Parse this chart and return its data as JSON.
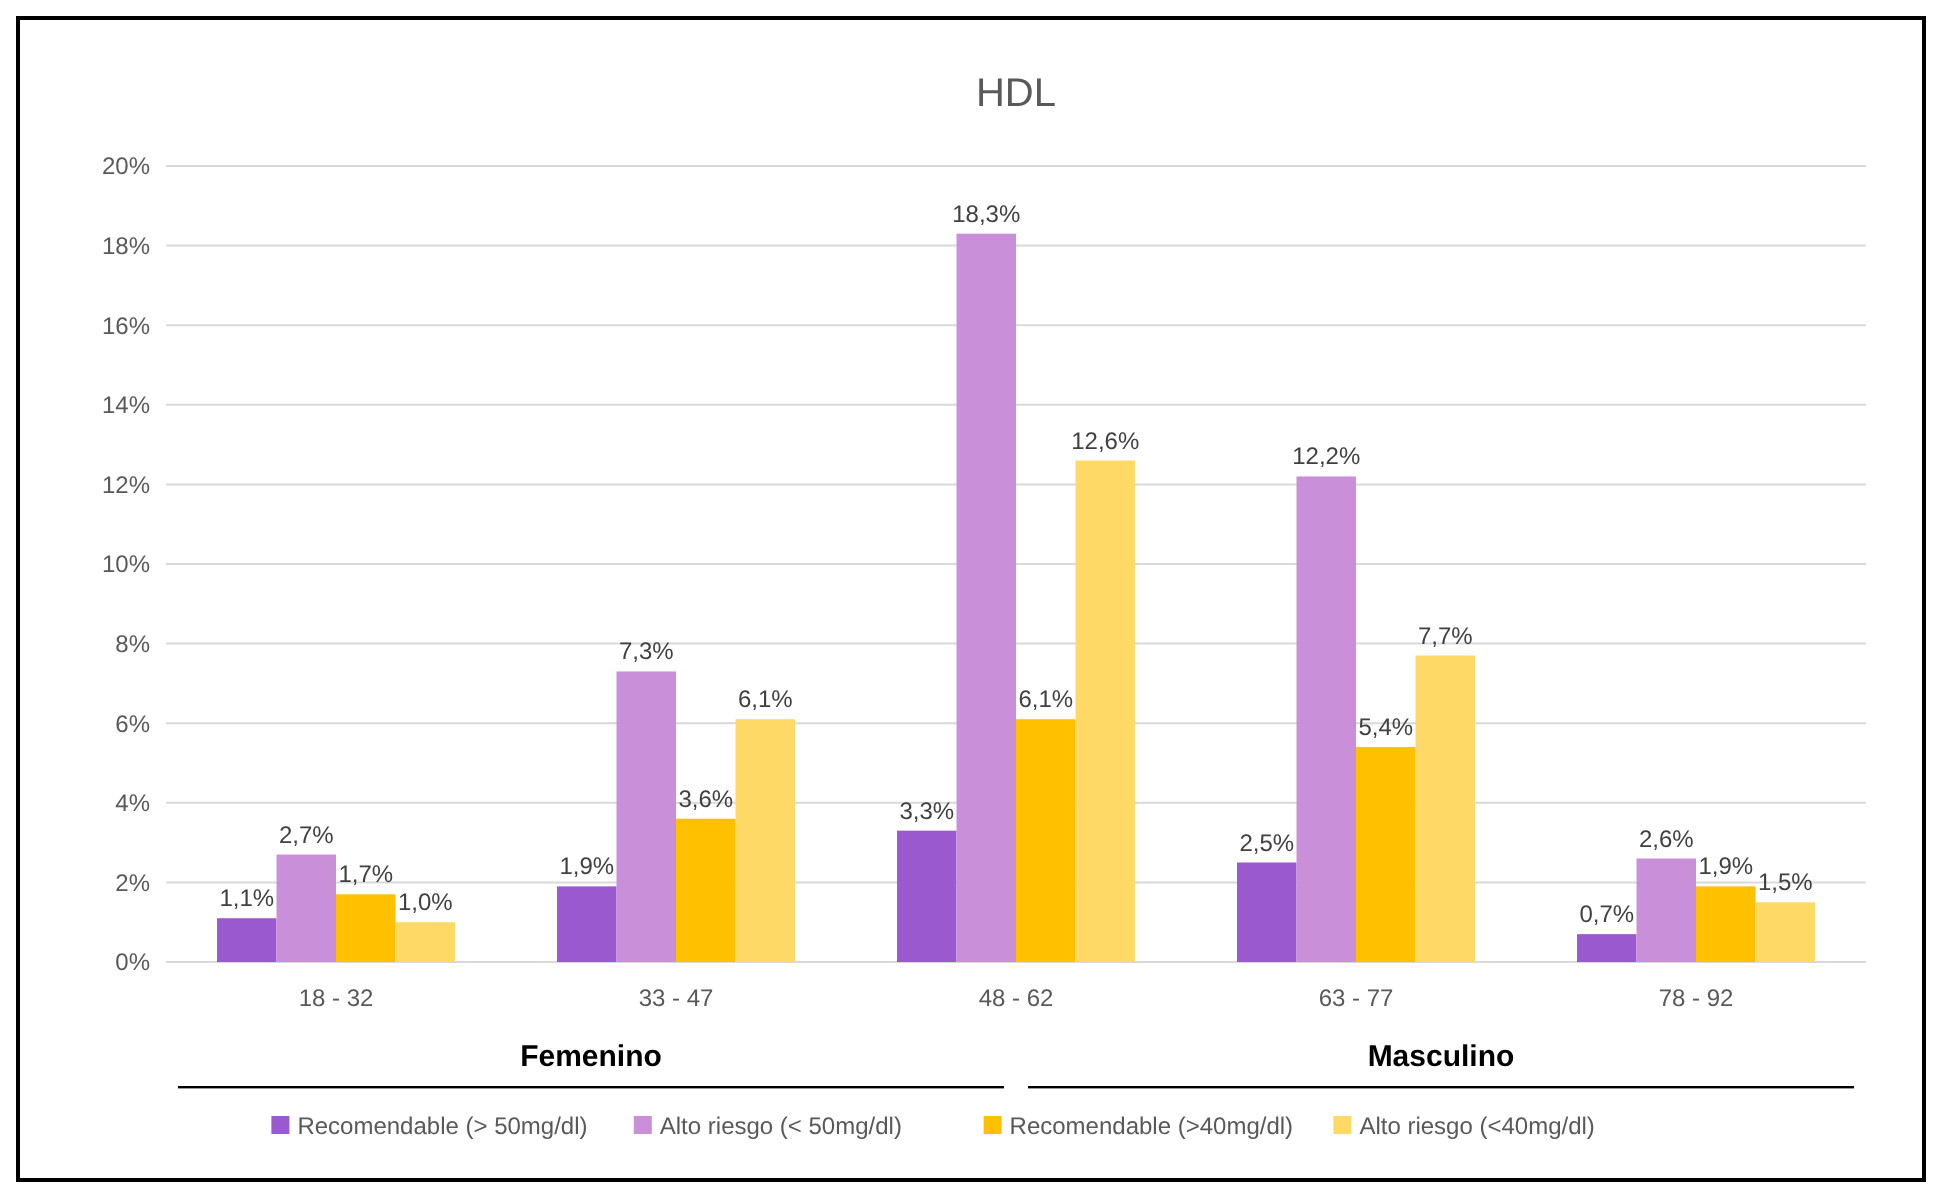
{
  "chart_data": {
    "type": "bar",
    "title": "HDL",
    "categories": [
      "18 - 32",
      "33 - 47",
      "48 - 62",
      "63 - 77",
      "78 - 92"
    ],
    "series": [
      {
        "name": "Recomendable (> 50mg/dl)",
        "color": "#9b59d0",
        "values": [
          1.1,
          1.9,
          3.3,
          2.5,
          0.7
        ],
        "value_labels": [
          "1,1%",
          "1,9%",
          "3,3%",
          "2,5%",
          "0,7%"
        ]
      },
      {
        "name": "Alto riesgo (< 50mg/dl)",
        "color": "#c98fd9",
        "values": [
          2.7,
          7.3,
          18.3,
          12.2,
          2.6
        ],
        "value_labels": [
          "2,7%",
          "7,3%",
          "18,3%",
          "12,2%",
          "2,6%"
        ]
      },
      {
        "name": "Recomendable (>40mg/dl)",
        "color": "#ffc000",
        "values": [
          1.7,
          3.6,
          6.1,
          5.4,
          1.9
        ],
        "value_labels": [
          "1,7%",
          "3,6%",
          "6,1%",
          "5,4%",
          "1,9%"
        ]
      },
      {
        "name": "Alto riesgo (<40mg/dl)",
        "color": "#ffd966",
        "values": [
          1.0,
          6.1,
          12.6,
          7.7,
          1.5
        ],
        "value_labels": [
          "1,0%",
          "6,1%",
          "12,6%",
          "7,7%",
          "1,5%"
        ]
      }
    ],
    "annotations": [
      "Femenino",
      "Masculino"
    ],
    "ylim": [
      0,
      20
    ],
    "yticks": [
      {
        "value": 0,
        "label": "0%"
      },
      {
        "value": 2,
        "label": "2%"
      },
      {
        "value": 4,
        "label": "4%"
      },
      {
        "value": 6,
        "label": "6%"
      },
      {
        "value": 8,
        "label": "8%"
      },
      {
        "value": 10,
        "label": "10%"
      },
      {
        "value": 12,
        "label": "12%"
      },
      {
        "value": 14,
        "label": "14%"
      },
      {
        "value": 16,
        "label": "16%"
      },
      {
        "value": 18,
        "label": "18%"
      },
      {
        "value": 20,
        "label": "20%"
      }
    ],
    "grid": "y",
    "legend": "bottom"
  }
}
